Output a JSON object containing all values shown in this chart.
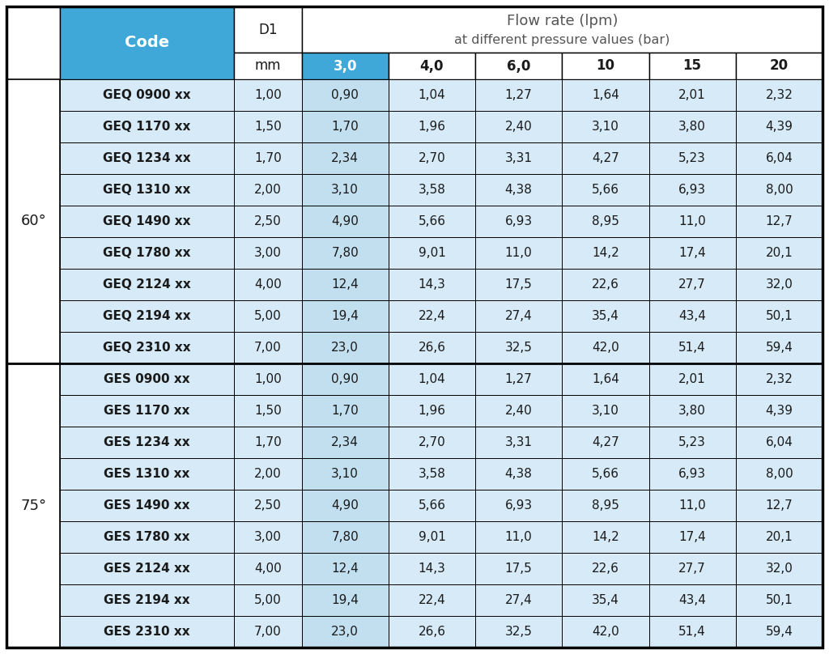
{
  "title_line1": "Flow rate (lpm)",
  "title_line2": "at different pressure values (bar)",
  "header_col1": "Code",
  "header_col2": "D1",
  "header_col3_unit": "mm",
  "pressure_headers": [
    "3,0",
    "4,0",
    "6,0",
    "10",
    "15",
    "20"
  ],
  "angle_groups": [
    {
      "angle": "60°",
      "rows": [
        {
          "code": "GEQ 0900 xx",
          "d1": "1,00",
          "values": [
            "0,90",
            "1,04",
            "1,27",
            "1,64",
            "2,01",
            "2,32"
          ]
        },
        {
          "code": "GEQ 1170 xx",
          "d1": "1,50",
          "values": [
            "1,70",
            "1,96",
            "2,40",
            "3,10",
            "3,80",
            "4,39"
          ]
        },
        {
          "code": "GEQ 1234 xx",
          "d1": "1,70",
          "values": [
            "2,34",
            "2,70",
            "3,31",
            "4,27",
            "5,23",
            "6,04"
          ]
        },
        {
          "code": "GEQ 1310 xx",
          "d1": "2,00",
          "values": [
            "3,10",
            "3,58",
            "4,38",
            "5,66",
            "6,93",
            "8,00"
          ]
        },
        {
          "code": "GEQ 1490 xx",
          "d1": "2,50",
          "values": [
            "4,90",
            "5,66",
            "6,93",
            "8,95",
            "11,0",
            "12,7"
          ]
        },
        {
          "code": "GEQ 1780 xx",
          "d1": "3,00",
          "values": [
            "7,80",
            "9,01",
            "11,0",
            "14,2",
            "17,4",
            "20,1"
          ]
        },
        {
          "code": "GEQ 2124 xx",
          "d1": "4,00",
          "values": [
            "12,4",
            "14,3",
            "17,5",
            "22,6",
            "27,7",
            "32,0"
          ]
        },
        {
          "code": "GEQ 2194 xx",
          "d1": "5,00",
          "values": [
            "19,4",
            "22,4",
            "27,4",
            "35,4",
            "43,4",
            "50,1"
          ]
        },
        {
          "code": "GEQ 2310 xx",
          "d1": "7,00",
          "values": [
            "23,0",
            "26,6",
            "32,5",
            "42,0",
            "51,4",
            "59,4"
          ]
        }
      ]
    },
    {
      "angle": "75°",
      "rows": [
        {
          "code": "GES 0900 xx",
          "d1": "1,00",
          "values": [
            "0,90",
            "1,04",
            "1,27",
            "1,64",
            "2,01",
            "2,32"
          ]
        },
        {
          "code": "GES 1170 xx",
          "d1": "1,50",
          "values": [
            "1,70",
            "1,96",
            "2,40",
            "3,10",
            "3,80",
            "4,39"
          ]
        },
        {
          "code": "GES 1234 xx",
          "d1": "1,70",
          "values": [
            "2,34",
            "2,70",
            "3,31",
            "4,27",
            "5,23",
            "6,04"
          ]
        },
        {
          "code": "GES 1310 xx",
          "d1": "2,00",
          "values": [
            "3,10",
            "3,58",
            "4,38",
            "5,66",
            "6,93",
            "8,00"
          ]
        },
        {
          "code": "GES 1490 xx",
          "d1": "2,50",
          "values": [
            "4,90",
            "5,66",
            "6,93",
            "8,95",
            "11,0",
            "12,7"
          ]
        },
        {
          "code": "GES 1780 xx",
          "d1": "3,00",
          "values": [
            "7,80",
            "9,01",
            "11,0",
            "14,2",
            "17,4",
            "20,1"
          ]
        },
        {
          "code": "GES 2124 xx",
          "d1": "4,00",
          "values": [
            "12,4",
            "14,3",
            "17,5",
            "22,6",
            "27,7",
            "32,0"
          ]
        },
        {
          "code": "GES 2194 xx",
          "d1": "5,00",
          "values": [
            "19,4",
            "22,4",
            "27,4",
            "35,4",
            "43,4",
            "50,1"
          ]
        },
        {
          "code": "GES 2310 xx",
          "d1": "7,00",
          "values": [
            "23,0",
            "26,6",
            "32,5",
            "42,0",
            "51,4",
            "59,4"
          ]
        }
      ]
    }
  ],
  "color_header_blue": "#3fa8d8",
  "color_row_blue_light": "#d6eaf7",
  "color_row_blue_mid": "#c2dff0",
  "color_row_white": "#ffffff",
  "color_border": "#000000",
  "color_text_dark": "#1a1a1a",
  "color_text_white": "#ffffff",
  "color_bg": "#ffffff",
  "color_header_text": "#555555",
  "color_subhdr_30_bg": "#3fa8d8",
  "color_subhdr_30_text": "#ffffff"
}
